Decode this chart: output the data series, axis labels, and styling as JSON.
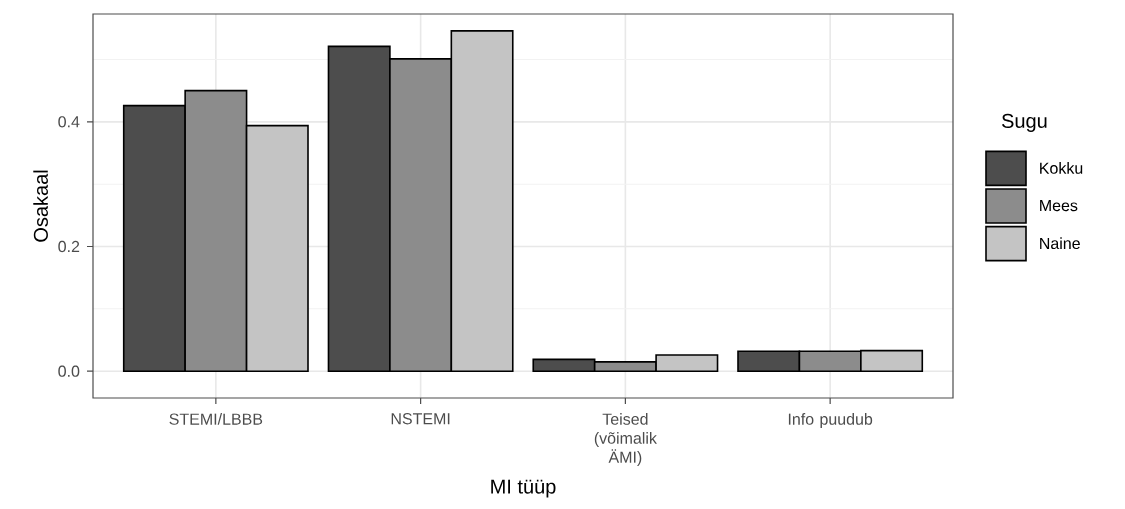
{
  "chart_data": {
    "type": "bar",
    "xlabel": "MI tüüp",
    "ylabel": "Osakaal",
    "legend_title": "Sugu",
    "categories": [
      "STEMI/LBBB",
      "NSTEMI",
      "Teised (võimalik ÄMI)",
      "Info puudub"
    ],
    "series": [
      {
        "name": "Kokku",
        "color": "#4d4d4d",
        "values": [
          0.426,
          0.521,
          0.019,
          0.032
        ]
      },
      {
        "name": "Mees",
        "color": "#8c8c8c",
        "values": [
          0.45,
          0.501,
          0.015,
          0.032
        ]
      },
      {
        "name": "Naine",
        "color": "#c4c4c4",
        "values": [
          0.394,
          0.546,
          0.026,
          0.033
        ]
      }
    ],
    "ylim": [
      -0.043,
      0.573
    ],
    "yticks": [
      {
        "value": 0,
        "label": "0.0"
      },
      {
        "value": 0.2,
        "label": "0.2"
      },
      {
        "value": 0.4,
        "label": "0.4"
      }
    ],
    "grid": true,
    "legend": "right"
  }
}
